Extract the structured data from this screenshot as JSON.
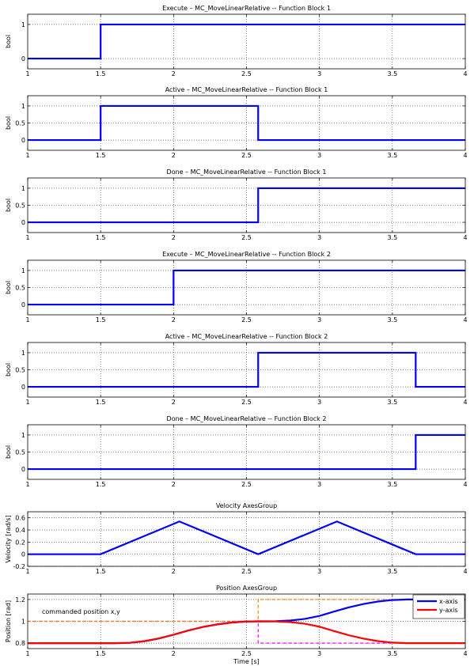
{
  "chart_data": [
    {
      "type": "line",
      "title": "Execute – MC_MoveLinearRelative -- Function Block 1",
      "ylabel": "bool",
      "xlabel": "",
      "xlim": [
        1,
        4
      ],
      "ylim": [
        -0.3,
        1.3
      ],
      "xticks": [
        "1",
        "1.5",
        "2",
        "2.5",
        "3",
        "3.5",
        "4"
      ],
      "yticks": [
        "0",
        "1"
      ],
      "grid": true,
      "series": [
        {
          "color": "#0000ff",
          "dashed": false,
          "x": [
            1,
            1.5,
            1.5,
            4
          ],
          "y": [
            0,
            0,
            1,
            1
          ]
        }
      ]
    },
    {
      "type": "line",
      "title": "Active – MC_MoveLinearRelative -- Function Block 1",
      "ylabel": "bool",
      "xlabel": "",
      "xlim": [
        1,
        4
      ],
      "ylim": [
        -0.3,
        1.3
      ],
      "xticks": [
        "1",
        "1.5",
        "2",
        "2.5",
        "3",
        "3.5",
        "4"
      ],
      "yticks": [
        "0",
        "0.5",
        "1"
      ],
      "grid": true,
      "series": [
        {
          "color": "#0000ff",
          "dashed": false,
          "x": [
            1,
            1.5,
            1.5,
            2.58,
            2.58,
            4
          ],
          "y": [
            0,
            0,
            1,
            1,
            0,
            0
          ]
        }
      ]
    },
    {
      "type": "line",
      "title": "Done – MC_MoveLinearRelative -- Function Block 1",
      "ylabel": "bool",
      "xlabel": "",
      "xlim": [
        1,
        4
      ],
      "ylim": [
        -0.3,
        1.3
      ],
      "xticks": [
        "1",
        "1.5",
        "2",
        "2.5",
        "3",
        "3.5",
        "4"
      ],
      "yticks": [
        "0",
        "0.5",
        "1"
      ],
      "grid": true,
      "series": [
        {
          "color": "#0000ff",
          "dashed": false,
          "x": [
            1,
            2.58,
            2.58,
            4
          ],
          "y": [
            0,
            0,
            1,
            1
          ]
        }
      ]
    },
    {
      "type": "line",
      "title": "Execute – MC_MoveLinearRelative -- Function Block 2",
      "ylabel": "bool",
      "xlabel": "",
      "xlim": [
        1,
        4
      ],
      "ylim": [
        -0.3,
        1.3
      ],
      "xticks": [
        "1",
        "1.5",
        "2",
        "2.5",
        "3",
        "3.5",
        "4"
      ],
      "yticks": [
        "0",
        "0.5",
        "1"
      ],
      "grid": true,
      "series": [
        {
          "color": "#0000ff",
          "dashed": false,
          "x": [
            1,
            2,
            2,
            4
          ],
          "y": [
            0,
            0,
            1,
            1
          ]
        }
      ]
    },
    {
      "type": "line",
      "title": "Active – MC_MoveLinearRelative -- Function Block 2",
      "ylabel": "bool",
      "xlabel": "",
      "xlim": [
        1,
        4
      ],
      "ylim": [
        -0.3,
        1.3
      ],
      "xticks": [
        "1",
        "1.5",
        "2",
        "2.5",
        "3",
        "3.5",
        "4"
      ],
      "yticks": [
        "0",
        "0.5",
        "1"
      ],
      "grid": true,
      "series": [
        {
          "color": "#0000ff",
          "dashed": false,
          "x": [
            1,
            2.58,
            2.58,
            3.66,
            3.66,
            4
          ],
          "y": [
            0,
            0,
            1,
            1,
            0,
            0
          ]
        }
      ]
    },
    {
      "type": "line",
      "title": "Done – MC_MoveLinearRelative -- Function Block 2",
      "ylabel": "bool",
      "xlabel": "",
      "xlim": [
        1,
        4
      ],
      "ylim": [
        -0.3,
        1.3
      ],
      "xticks": [
        "1",
        "1.5",
        "2",
        "2.5",
        "3",
        "3.5",
        "4"
      ],
      "yticks": [
        "0",
        "0.5",
        "1"
      ],
      "grid": true,
      "series": [
        {
          "color": "#0000ff",
          "dashed": false,
          "x": [
            1,
            3.66,
            3.66,
            4
          ],
          "y": [
            0,
            0,
            1,
            1
          ]
        }
      ]
    },
    {
      "type": "line",
      "title": "Velocity AxesGroup",
      "ylabel": "Velocity [rad/s]",
      "xlabel": "",
      "xlim": [
        1,
        4
      ],
      "ylim": [
        -0.2,
        0.7
      ],
      "xticks": [
        "1",
        "1.5",
        "2",
        "2.5",
        "3",
        "3.5",
        "4"
      ],
      "yticks": [
        "-0.2",
        "0",
        "0.2",
        "0.4",
        "0.6"
      ],
      "grid": true,
      "series": [
        {
          "color": "#0000ff",
          "dashed": false,
          "x": [
            1,
            1.5,
            2.04,
            2.58,
            3.12,
            3.66,
            4
          ],
          "y": [
            0,
            0,
            0.54,
            0,
            0.54,
            0,
            0
          ]
        }
      ]
    },
    {
      "type": "line",
      "title": "Position AxesGroup",
      "ylabel": "Position [rad]",
      "xlabel": "Time [s]",
      "xlim": [
        1,
        4
      ],
      "ylim": [
        0.75,
        1.25
      ],
      "xticks": [
        "1",
        "1.5",
        "2",
        "2.5",
        "3",
        "3.5",
        "4"
      ],
      "yticks": [
        "0.8",
        "1",
        "1.2"
      ],
      "grid": true,
      "annotation": "commanded position x,y",
      "legend_position": "top-right",
      "series": [
        {
          "name": "",
          "color": "#ff00ff",
          "dashed": true,
          "x": [
            1,
            2.58,
            2.58,
            4
          ],
          "y": [
            1,
            1,
            0.8,
            0.8
          ]
        },
        {
          "name": "",
          "color": "#ff8000",
          "dashed": true,
          "x": [
            1,
            2.58,
            2.58,
            4
          ],
          "y": [
            1,
            1,
            1.2,
            1.2
          ]
        },
        {
          "name": "x-axis",
          "color": "#0000ff",
          "dashed": false,
          "x": [
            1,
            1.5,
            1.6,
            1.7,
            1.8,
            1.9,
            2.0,
            2.1,
            2.2,
            2.3,
            2.4,
            2.5,
            2.58,
            2.7,
            2.8,
            2.9,
            3.0,
            3.1,
            3.2,
            3.3,
            3.4,
            3.5,
            3.6,
            3.66,
            4
          ],
          "y": [
            0.8,
            0.8,
            0.8,
            0.803,
            0.818,
            0.843,
            0.877,
            0.915,
            0.948,
            0.972,
            0.989,
            0.998,
            1.0,
            1.001,
            1.007,
            1.022,
            1.049,
            1.089,
            1.127,
            1.158,
            1.181,
            1.195,
            1.2,
            1.2,
            1.2
          ]
        },
        {
          "name": "y-axis",
          "color": "#ff0000",
          "dashed": false,
          "x": [
            1,
            1.5,
            1.6,
            1.7,
            1.8,
            1.9,
            2.0,
            2.1,
            2.2,
            2.3,
            2.4,
            2.5,
            2.58,
            2.7,
            2.8,
            2.9,
            3.0,
            3.1,
            3.2,
            3.3,
            3.4,
            3.5,
            3.6,
            3.66,
            4
          ],
          "y": [
            0.8,
            0.8,
            0.8,
            0.803,
            0.818,
            0.843,
            0.877,
            0.915,
            0.948,
            0.972,
            0.989,
            0.998,
            1.0,
            0.999,
            0.993,
            0.978,
            0.951,
            0.911,
            0.873,
            0.842,
            0.819,
            0.805,
            0.8,
            0.8,
            0.8
          ]
        }
      ]
    }
  ]
}
